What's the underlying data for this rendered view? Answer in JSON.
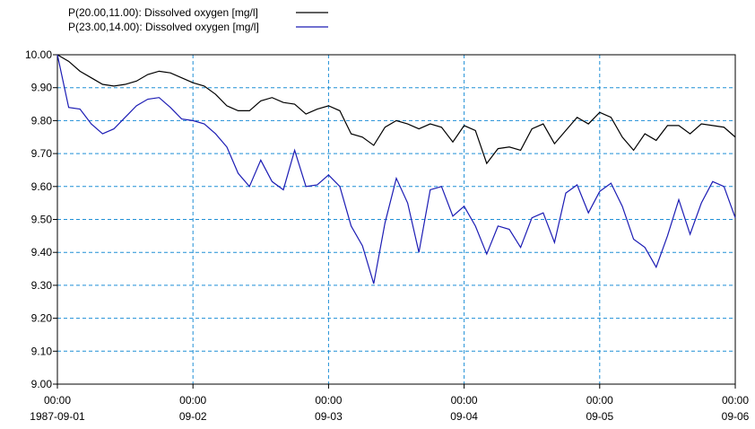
{
  "chart_data": {
    "type": "line",
    "x": [
      "1987-09-01 00:00",
      "1987-09-01 02:00",
      "1987-09-01 04:00",
      "1987-09-01 06:00",
      "1987-09-01 08:00",
      "1987-09-01 10:00",
      "1987-09-01 12:00",
      "1987-09-01 14:00",
      "1987-09-01 16:00",
      "1987-09-01 18:00",
      "1987-09-01 20:00",
      "1987-09-01 22:00",
      "1987-09-02 00:00",
      "1987-09-02 02:00",
      "1987-09-02 04:00",
      "1987-09-02 06:00",
      "1987-09-02 08:00",
      "1987-09-02 10:00",
      "1987-09-02 12:00",
      "1987-09-02 14:00",
      "1987-09-02 16:00",
      "1987-09-02 18:00",
      "1987-09-02 20:00",
      "1987-09-02 22:00",
      "1987-09-03 00:00",
      "1987-09-03 02:00",
      "1987-09-03 04:00",
      "1987-09-03 06:00",
      "1987-09-03 08:00",
      "1987-09-03 10:00",
      "1987-09-03 12:00",
      "1987-09-03 14:00",
      "1987-09-03 16:00",
      "1987-09-03 18:00",
      "1987-09-03 20:00",
      "1987-09-03 22:00",
      "1987-09-04 00:00",
      "1987-09-04 02:00",
      "1987-09-04 04:00",
      "1987-09-04 06:00",
      "1987-09-04 08:00",
      "1987-09-04 10:00",
      "1987-09-04 12:00",
      "1987-09-04 14:00",
      "1987-09-04 16:00",
      "1987-09-04 18:00",
      "1987-09-04 20:00",
      "1987-09-04 22:00",
      "1987-09-05 00:00",
      "1987-09-05 02:00",
      "1987-09-05 04:00",
      "1987-09-05 06:00",
      "1987-09-05 08:00",
      "1987-09-05 10:00",
      "1987-09-05 12:00",
      "1987-09-05 14:00",
      "1987-09-05 16:00",
      "1987-09-05 18:00",
      "1987-09-05 20:00",
      "1987-09-05 22:00",
      "1987-09-06 00:00"
    ],
    "series": [
      {
        "name": "P(20.00,11.00): Dissolved oxygen [mg/l]",
        "color": "#000000",
        "values": [
          10.0,
          9.98,
          9.95,
          9.93,
          9.91,
          9.905,
          9.91,
          9.92,
          9.94,
          9.95,
          9.945,
          9.93,
          9.915,
          9.905,
          9.88,
          9.845,
          9.83,
          9.83,
          9.86,
          9.87,
          9.855,
          9.85,
          9.82,
          9.835,
          9.845,
          9.83,
          9.76,
          9.75,
          9.725,
          9.78,
          9.8,
          9.79,
          9.775,
          9.79,
          9.78,
          9.735,
          9.785,
          9.77,
          9.67,
          9.715,
          9.72,
          9.71,
          9.775,
          9.79,
          9.73,
          9.77,
          9.81,
          9.79,
          9.825,
          9.81,
          9.75,
          9.71,
          9.76,
          9.74,
          9.785,
          9.785,
          9.76,
          9.79,
          9.785,
          9.78,
          9.75
        ]
      },
      {
        "name": "P(23.00,14.00): Dissolved oxygen [mg/l]",
        "color": "#1c1cb4",
        "values": [
          10.0,
          9.84,
          9.835,
          9.79,
          9.76,
          9.775,
          9.81,
          9.845,
          9.865,
          9.87,
          9.84,
          9.805,
          9.8,
          9.79,
          9.76,
          9.72,
          9.64,
          9.6,
          9.68,
          9.615,
          9.59,
          9.71,
          9.6,
          9.605,
          9.635,
          9.6,
          9.48,
          9.42,
          9.305,
          9.49,
          9.625,
          9.55,
          9.4,
          9.59,
          9.6,
          9.51,
          9.54,
          9.48,
          9.395,
          9.48,
          9.47,
          9.415,
          9.505,
          9.52,
          9.43,
          9.58,
          9.605,
          9.52,
          9.585,
          9.61,
          9.54,
          9.44,
          9.415,
          9.355,
          9.45,
          9.56,
          9.455,
          9.55,
          9.615,
          9.6,
          9.505
        ]
      }
    ],
    "xlim": [
      "1987-09-01 00:00",
      "1987-09-06 00:00"
    ],
    "xticks": [
      {
        "value": "1987-09-01 00:00",
        "label": [
          "00:00",
          "1987-09-01"
        ]
      },
      {
        "value": "1987-09-02 00:00",
        "label": [
          "00:00",
          "09-02"
        ]
      },
      {
        "value": "1987-09-03 00:00",
        "label": [
          "00:00",
          "09-03"
        ]
      },
      {
        "value": "1987-09-04 00:00",
        "label": [
          "00:00",
          "09-04"
        ]
      },
      {
        "value": "1987-09-05 00:00",
        "label": [
          "00:00",
          "09-05"
        ]
      },
      {
        "value": "1987-09-06 00:00",
        "label": [
          "00:00",
          "09-06"
        ]
      }
    ],
    "ylim": [
      9.0,
      10.0
    ],
    "yticks": [
      {
        "value": 10.0,
        "label": "10.00"
      },
      {
        "value": 9.9,
        "label": "9.90"
      },
      {
        "value": 9.8,
        "label": "9.80"
      },
      {
        "value": 9.7,
        "label": "9.70"
      },
      {
        "value": 9.6,
        "label": "9.60"
      },
      {
        "value": 9.5,
        "label": "9.50"
      },
      {
        "value": 9.4,
        "label": "9.40"
      },
      {
        "value": 9.3,
        "label": "9.30"
      },
      {
        "value": 9.2,
        "label": "9.20"
      },
      {
        "value": 9.1,
        "label": "9.10"
      },
      {
        "value": 9.0,
        "label": "9.00"
      }
    ],
    "grid": true,
    "grid_color": "#1f8fd6"
  }
}
